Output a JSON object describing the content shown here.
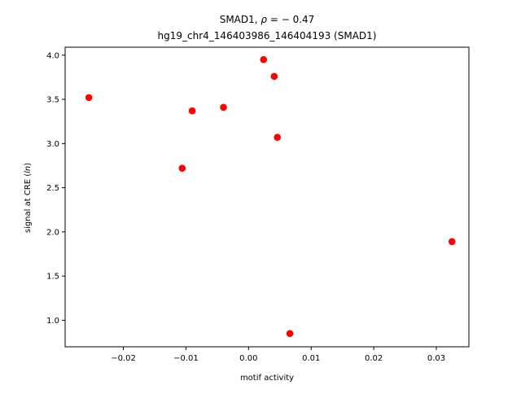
{
  "chart_data": {
    "type": "scatter",
    "title_line1_prefix": "SMAD1, ",
    "title_line1_rho": "ρ",
    "title_line1_suffix": " = − 0.47",
    "title_line2": "hg19_chr4_146403986_146404193 (SMAD1)",
    "xlabel": "motif activity",
    "ylabel_prefix": "signal at CRE (",
    "ylabel_italic": "ln",
    "ylabel_suffix": ")",
    "xlim": [
      -0.0293,
      0.0352
    ],
    "ylim": [
      0.7,
      4.09
    ],
    "x_ticks": [
      -0.02,
      -0.01,
      0.0,
      0.01,
      0.02,
      0.03
    ],
    "x_tick_labels": [
      "−0.02",
      "−0.01",
      "0.00",
      "0.01",
      "0.02",
      "0.03"
    ],
    "y_ticks": [
      1.0,
      1.5,
      2.0,
      2.5,
      3.0,
      3.5,
      4.0
    ],
    "y_tick_labels": [
      "1.0",
      "1.5",
      "2.0",
      "2.5",
      "3.0",
      "3.5",
      "4.0"
    ],
    "point_color": "#ff0000",
    "grid": false,
    "legend": "none",
    "points": [
      {
        "x": -0.0255,
        "y": 3.52
      },
      {
        "x": -0.0106,
        "y": 2.72
      },
      {
        "x": -0.009,
        "y": 3.37
      },
      {
        "x": -0.004,
        "y": 3.41
      },
      {
        "x": 0.0024,
        "y": 3.95
      },
      {
        "x": 0.0041,
        "y": 3.76
      },
      {
        "x": 0.0046,
        "y": 3.07
      },
      {
        "x": 0.0066,
        "y": 0.85
      },
      {
        "x": 0.0325,
        "y": 1.89
      }
    ]
  }
}
